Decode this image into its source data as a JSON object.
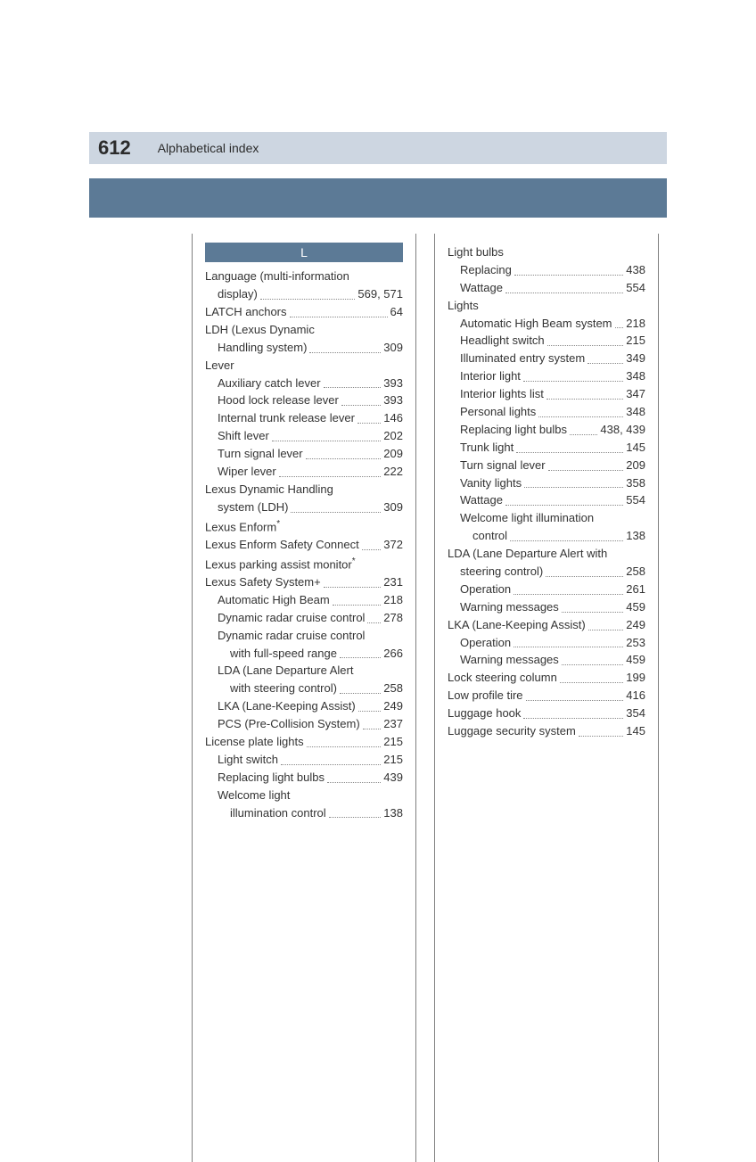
{
  "header": {
    "page_number": "612",
    "title": "Alphabetical index"
  },
  "section_letter": "L",
  "col1": [
    {
      "t": "line",
      "label": "Language (multi-information"
    },
    {
      "t": "entry",
      "indent": 1,
      "label": "display)",
      "page": "569, 571"
    },
    {
      "t": "entry",
      "indent": 0,
      "label": "LATCH anchors",
      "page": "64"
    },
    {
      "t": "line",
      "label": "LDH (Lexus Dynamic"
    },
    {
      "t": "entry",
      "indent": 1,
      "label": "Handling system)",
      "page": "309"
    },
    {
      "t": "line",
      "label": "Lever"
    },
    {
      "t": "entry",
      "indent": 1,
      "label": "Auxiliary catch lever",
      "page": "393"
    },
    {
      "t": "entry",
      "indent": 1,
      "label": "Hood lock release lever",
      "page": "393"
    },
    {
      "t": "entry",
      "indent": 1,
      "label": "Internal trunk release lever",
      "page": "146"
    },
    {
      "t": "entry",
      "indent": 1,
      "label": "Shift lever",
      "page": "202"
    },
    {
      "t": "entry",
      "indent": 1,
      "label": "Turn signal lever",
      "page": "209"
    },
    {
      "t": "entry",
      "indent": 1,
      "label": "Wiper lever",
      "page": "222"
    },
    {
      "t": "line",
      "label": "Lexus Dynamic Handling"
    },
    {
      "t": "entry",
      "indent": 1,
      "label": "system (LDH)",
      "page": "309"
    },
    {
      "t": "line_ast",
      "label": "Lexus Enform"
    },
    {
      "t": "entry",
      "indent": 0,
      "label": "Lexus Enform Safety Connect",
      "page": "372"
    },
    {
      "t": "line_ast",
      "label": "Lexus parking assist monitor"
    },
    {
      "t": "entry",
      "indent": 0,
      "label": "Lexus Safety System+",
      "page": "231"
    },
    {
      "t": "entry",
      "indent": 1,
      "label": "Automatic High Beam",
      "page": "218"
    },
    {
      "t": "entry",
      "indent": 1,
      "label": "Dynamic radar cruise control",
      "page": "278"
    },
    {
      "t": "line",
      "indent": 1,
      "label": "Dynamic radar cruise control"
    },
    {
      "t": "entry",
      "indent": 2,
      "label": "with full-speed range",
      "page": "266"
    },
    {
      "t": "line",
      "indent": 1,
      "label": "LDA (Lane Departure Alert"
    },
    {
      "t": "entry",
      "indent": 2,
      "label": "with steering control)",
      "page": "258"
    },
    {
      "t": "entry",
      "indent": 1,
      "label": "LKA (Lane-Keeping Assist)",
      "page": "249"
    },
    {
      "t": "entry",
      "indent": 1,
      "label": "PCS (Pre-Collision System)",
      "page": "237"
    },
    {
      "t": "entry",
      "indent": 0,
      "label": "License plate lights",
      "page": "215"
    },
    {
      "t": "entry",
      "indent": 1,
      "label": "Light switch",
      "page": "215"
    },
    {
      "t": "entry",
      "indent": 1,
      "label": "Replacing light bulbs",
      "page": "439"
    },
    {
      "t": "line",
      "indent": 1,
      "label": "Welcome light"
    },
    {
      "t": "entry",
      "indent": 2,
      "label": "illumination control",
      "page": "138"
    }
  ],
  "col2": [
    {
      "t": "line",
      "label": "Light bulbs"
    },
    {
      "t": "entry",
      "indent": 1,
      "label": "Replacing",
      "page": "438"
    },
    {
      "t": "entry",
      "indent": 1,
      "label": "Wattage",
      "page": "554"
    },
    {
      "t": "line",
      "label": "Lights"
    },
    {
      "t": "entry",
      "indent": 1,
      "label": "Automatic High Beam system",
      "page": "218"
    },
    {
      "t": "entry",
      "indent": 1,
      "label": "Headlight switch",
      "page": "215"
    },
    {
      "t": "entry",
      "indent": 1,
      "label": "Illuminated entry system",
      "page": "349"
    },
    {
      "t": "entry",
      "indent": 1,
      "label": "Interior light",
      "page": "348"
    },
    {
      "t": "entry",
      "indent": 1,
      "label": "Interior lights list",
      "page": "347"
    },
    {
      "t": "entry",
      "indent": 1,
      "label": "Personal lights",
      "page": "348"
    },
    {
      "t": "entry",
      "indent": 1,
      "label": "Replacing light bulbs",
      "page": "438, 439"
    },
    {
      "t": "entry",
      "indent": 1,
      "label": "Trunk light",
      "page": "145"
    },
    {
      "t": "entry",
      "indent": 1,
      "label": "Turn signal lever",
      "page": "209"
    },
    {
      "t": "entry",
      "indent": 1,
      "label": "Vanity lights",
      "page": "358"
    },
    {
      "t": "entry",
      "indent": 1,
      "label": "Wattage",
      "page": "554"
    },
    {
      "t": "line",
      "indent": 1,
      "label": "Welcome light illumination"
    },
    {
      "t": "entry",
      "indent": 2,
      "label": "control",
      "page": "138"
    },
    {
      "t": "line",
      "label": "LDA (Lane Departure Alert with"
    },
    {
      "t": "entry",
      "indent": 1,
      "label": "steering control)",
      "page": "258"
    },
    {
      "t": "entry",
      "indent": 1,
      "label": "Operation",
      "page": "261"
    },
    {
      "t": "entry",
      "indent": 1,
      "label": "Warning messages",
      "page": "459"
    },
    {
      "t": "entry",
      "indent": 0,
      "label": "LKA (Lane-Keeping Assist)",
      "page": "249"
    },
    {
      "t": "entry",
      "indent": 1,
      "label": "Operation",
      "page": "253"
    },
    {
      "t": "entry",
      "indent": 1,
      "label": "Warning messages",
      "page": "459"
    },
    {
      "t": "entry",
      "indent": 0,
      "label": "Lock steering column",
      "page": "199"
    },
    {
      "t": "entry",
      "indent": 0,
      "label": "Low profile tire",
      "page": "416"
    },
    {
      "t": "entry",
      "indent": 0,
      "label": "Luggage hook",
      "page": "354"
    },
    {
      "t": "entry",
      "indent": 0,
      "label": "Luggage security system",
      "page": "145"
    }
  ]
}
